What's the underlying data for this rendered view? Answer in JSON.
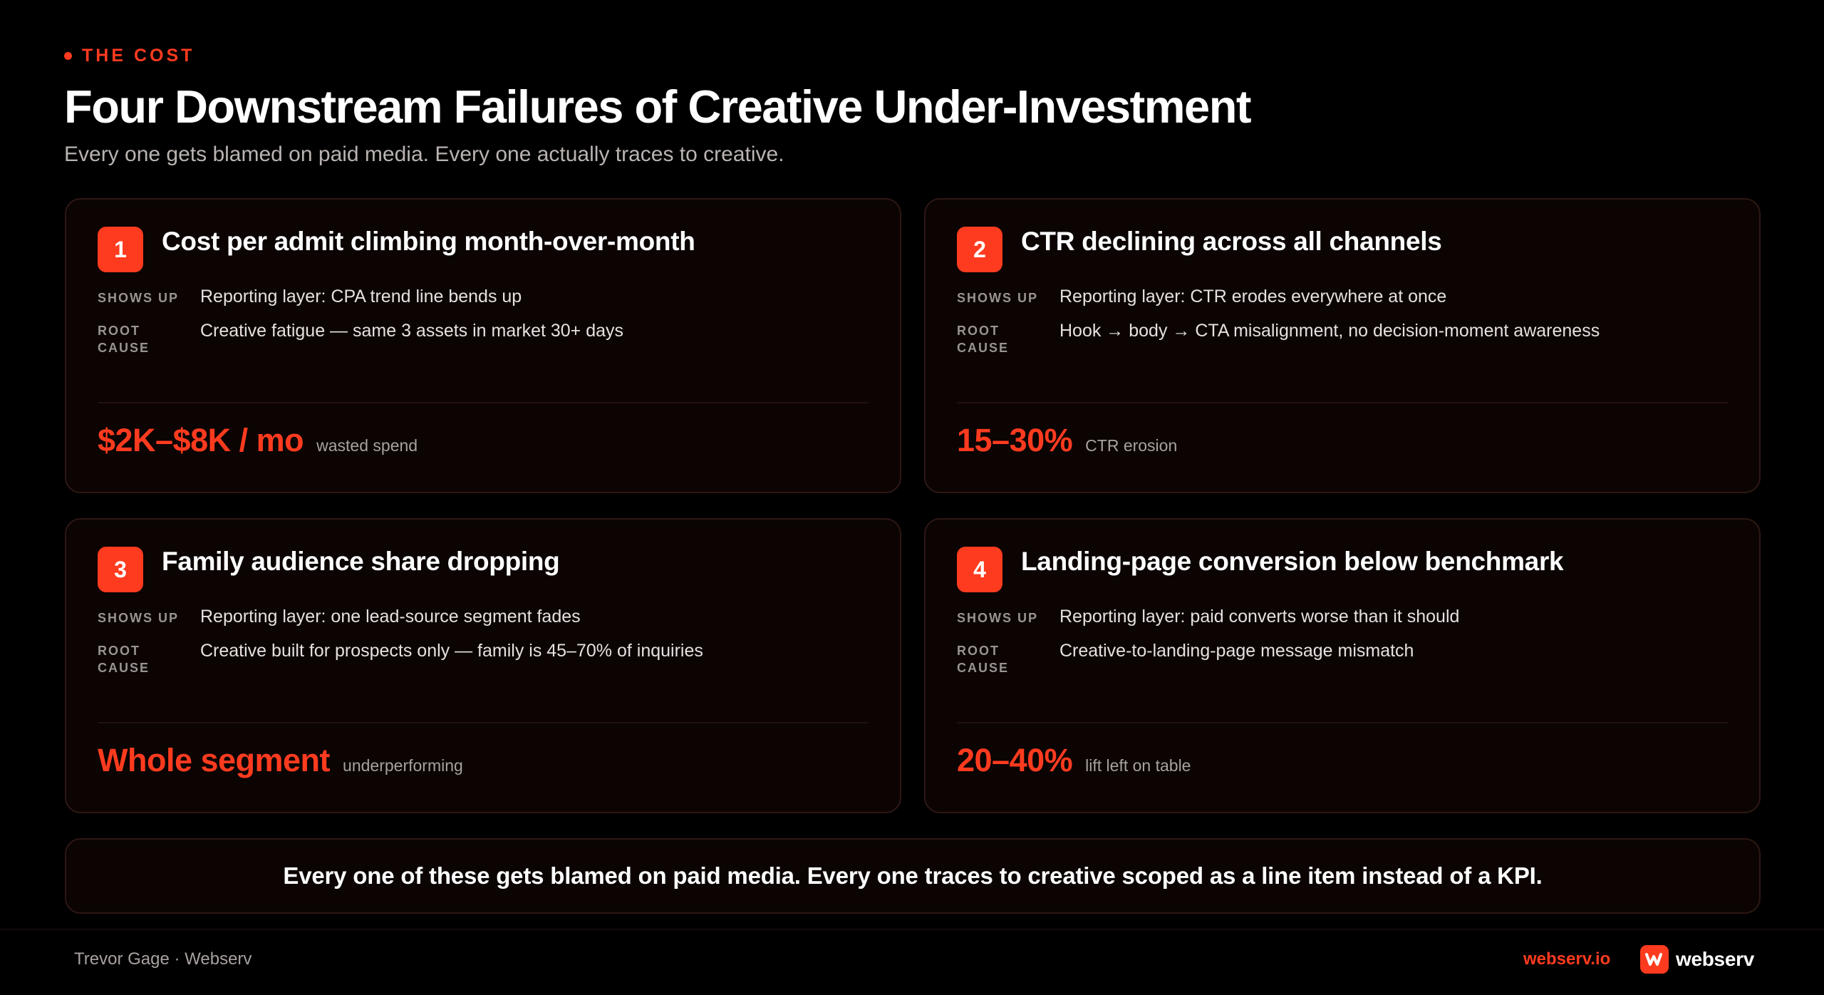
{
  "header": {
    "eyebrow": "THE COST",
    "title": "Four Downstream Failures of Creative Under-Investment",
    "subtitle": "Every one gets blamed on paid media. Every one actually traces to creative."
  },
  "labels": {
    "shows_up": "SHOWS UP",
    "root_cause_line1": "ROOT",
    "root_cause_line2": "CAUSE"
  },
  "cards": [
    {
      "number": "1",
      "title": "Cost per admit climbing month-over-month",
      "shows_up": "Reporting layer: CPA trend line bends up",
      "root_cause": "Creative fatigue — same 3 assets in market 30+ days",
      "metric_value": "$2K–$8K / mo",
      "metric_note": "wasted spend"
    },
    {
      "number": "2",
      "title": "CTR declining across all channels",
      "shows_up": "Reporting layer: CTR erodes everywhere at once",
      "root_cause": "Hook → body → CTA misalignment, no decision-moment awareness",
      "metric_value": "15–30%",
      "metric_note": "CTR erosion"
    },
    {
      "number": "3",
      "title": "Family audience share dropping",
      "shows_up": "Reporting layer: one lead-source segment fades",
      "root_cause": "Creative built for prospects only — family is 45–70% of inquiries",
      "metric_value": "Whole segment",
      "metric_note": "underperforming"
    },
    {
      "number": "4",
      "title": "Landing-page conversion below benchmark",
      "shows_up": "Reporting layer: paid converts worse than it should",
      "root_cause": "Creative-to-landing-page message mismatch",
      "metric_value": "20–40%",
      "metric_note": "lift left on table"
    }
  ],
  "callout": {
    "text": "Every one of these gets blamed on paid media. Every one traces to creative scoped as a line item instead of a KPI."
  },
  "footer": {
    "author": "Trevor Gage · Webserv",
    "link": "webserv.io",
    "logo_word": "webserv",
    "logo_icon": "webserv-logo-icon"
  },
  "colors": {
    "accent": "#ff3b1f",
    "background": "#000000",
    "card_background": "#0b0403",
    "card_border": "#2e1714"
  }
}
